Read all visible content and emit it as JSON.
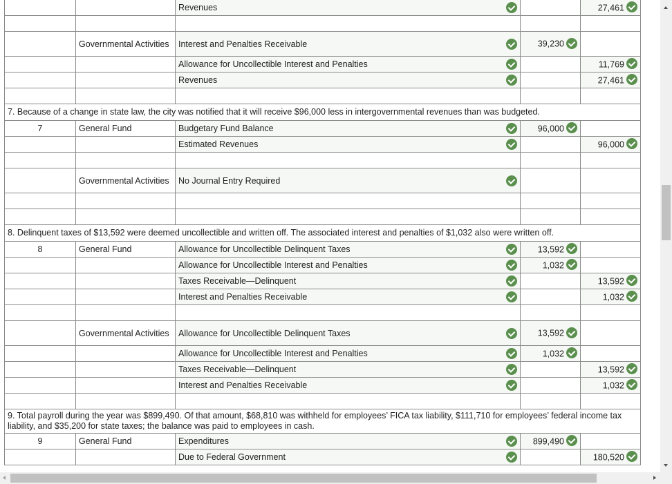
{
  "colors": {
    "check": "#5a8f4e",
    "filled_cell": "#f6f8f5",
    "border": "#8a8a8a"
  },
  "rows": [
    {
      "type": "entry",
      "no": "",
      "fund": "",
      "account": "Revenues",
      "acct_check": true,
      "debit": "",
      "credit": "27,461"
    },
    {
      "type": "blank"
    },
    {
      "type": "entry",
      "tall": true,
      "no": "",
      "fund": "Governmental Activities",
      "account": "Interest and Penalties Receivable",
      "acct_check": true,
      "debit": "39,230",
      "credit": ""
    },
    {
      "type": "entry",
      "no": "",
      "fund": "",
      "account": "Allowance for Uncollectible Interest and Penalties",
      "acct_check": true,
      "debit": "",
      "credit": "11,769"
    },
    {
      "type": "entry",
      "no": "",
      "fund": "",
      "account": "Revenues",
      "acct_check": true,
      "debit": "",
      "credit": "27,461"
    },
    {
      "type": "blank"
    },
    {
      "type": "desc",
      "text": "7. Because of a change in state law, the city was notified that it will receive $96,000 less in intergovernmental revenues than was budgeted."
    },
    {
      "type": "entry",
      "no": "7",
      "fund": "General Fund",
      "account": "Budgetary Fund Balance",
      "acct_check": true,
      "debit": "96,000",
      "credit": ""
    },
    {
      "type": "entry",
      "no": "",
      "fund": "",
      "account": "Estimated Revenues",
      "acct_check": true,
      "debit": "",
      "credit": "96,000"
    },
    {
      "type": "blank"
    },
    {
      "type": "entry",
      "tall": true,
      "no": "",
      "fund": "Governmental Activities",
      "account": "No Journal Entry Required",
      "acct_check": true,
      "debit": "",
      "credit": ""
    },
    {
      "type": "blank"
    },
    {
      "type": "blank"
    },
    {
      "type": "desc",
      "tall": true,
      "text": "8. Delinquent taxes of $13,592 were deemed uncollectible and written off. The associated interest and penalties of $1,032 also were written off."
    },
    {
      "type": "entry",
      "no": "8",
      "fund": "General Fund",
      "account": "Allowance for Uncollectible Delinquent Taxes",
      "acct_check": true,
      "debit": "13,592",
      "credit": ""
    },
    {
      "type": "entry",
      "no": "",
      "fund": "",
      "account": "Allowance for Uncollectible Interest and Penalties",
      "acct_check": true,
      "debit": "1,032",
      "credit": ""
    },
    {
      "type": "entry",
      "no": "",
      "fund": "",
      "account": "Taxes Receivable—Delinquent",
      "acct_check": true,
      "debit": "",
      "credit": "13,592"
    },
    {
      "type": "entry",
      "no": "",
      "fund": "",
      "account": "Interest and Penalties Receivable",
      "acct_check": true,
      "debit": "",
      "credit": "1,032"
    },
    {
      "type": "blank"
    },
    {
      "type": "entry",
      "tall": true,
      "no": "",
      "fund": "Governmental Activities",
      "account": "Allowance for Uncollectible Delinquent Taxes",
      "acct_check": true,
      "debit": "13,592",
      "credit": ""
    },
    {
      "type": "entry",
      "no": "",
      "fund": "",
      "account": "Allowance for Uncollectible Interest and Penalties",
      "acct_check": true,
      "debit": "1,032",
      "credit": ""
    },
    {
      "type": "entry",
      "no": "",
      "fund": "",
      "account": "Taxes Receivable—Delinquent",
      "acct_check": true,
      "debit": "",
      "credit": "13,592"
    },
    {
      "type": "entry",
      "no": "",
      "fund": "",
      "account": "Interest and Penalties Receivable",
      "acct_check": true,
      "debit": "",
      "credit": "1,032"
    },
    {
      "type": "blank"
    },
    {
      "type": "desc",
      "tall": true,
      "text": "9. Total payroll during the year was $899,490. Of that amount, $68,810 was withheld for employees’ FICA tax liability, $111,710 for employees’ federal income tax liability, and $35,200 for state taxes; the balance was paid to employees in cash."
    },
    {
      "type": "entry",
      "no": "9",
      "fund": "General Fund",
      "account": "Expenditures",
      "acct_check": true,
      "debit": "899,490",
      "credit": ""
    },
    {
      "type": "entry",
      "no": "",
      "fund": "",
      "account": "Due to Federal Government",
      "acct_check": true,
      "debit": "",
      "credit": "180,520"
    }
  ],
  "scrollbars": {
    "vertical_thumb": "scroll-thumb",
    "horizontal_thumb": "scroll-thumb"
  }
}
